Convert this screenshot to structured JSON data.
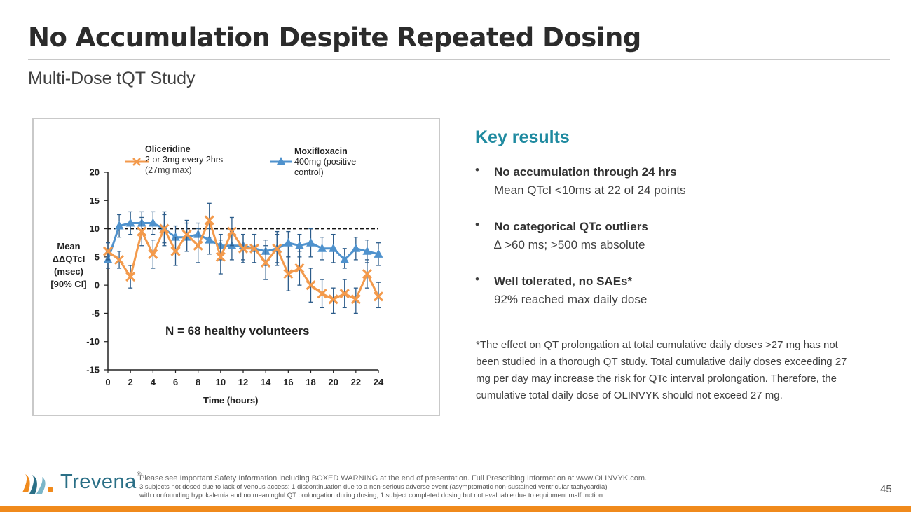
{
  "title": "No Accumulation Despite Repeated Dosing",
  "subtitle": "Multi-Dose tQT Study",
  "colors": {
    "oliceridine": "#f39a4c",
    "moxifloxacin": "#4f92cd",
    "error_bar": "#2c5c8a",
    "key_title": "#1f8aa0",
    "brand_bar": "#f08a1c",
    "logo": "#2a6f86"
  },
  "legend": {
    "oliceridine": {
      "name": "Oliceridine",
      "line1": "2 or 3mg every 2hrs",
      "line2": "(27mg max)"
    },
    "moxifloxacin": {
      "name": "Moxifloxacin",
      "line1": "400mg (positive",
      "line2": "control)"
    }
  },
  "annotation": "N = 68 healthy volunteers",
  "ylabel_lines": [
    "Mean",
    "ΔΔQTcI",
    "(msec)",
    "[90% CI]"
  ],
  "chart_data": {
    "type": "line",
    "xlabel": "Time (hours)",
    "ylabel": "Mean ΔΔQTcI (msec) [90% CI]",
    "xlim": [
      0,
      24
    ],
    "ylim": [
      -15,
      20
    ],
    "x_ticks": [
      0,
      2,
      4,
      6,
      8,
      10,
      12,
      14,
      16,
      18,
      20,
      22,
      24
    ],
    "y_ticks": [
      20,
      15,
      10,
      5,
      0,
      -5,
      -10,
      -15
    ],
    "threshold": 10,
    "x": [
      0,
      1,
      2,
      3,
      4,
      5,
      6,
      7,
      8,
      9,
      10,
      11,
      12,
      13,
      14,
      15,
      16,
      17,
      18,
      19,
      20,
      21,
      22,
      23,
      24
    ],
    "series": [
      {
        "name": "Oliceridine",
        "marker": "x",
        "values": [
          6,
          4.5,
          1.5,
          9.5,
          5.5,
          10,
          6,
          9,
          7,
          11.5,
          5,
          9.5,
          6.5,
          6.5,
          4,
          6.5,
          2,
          3,
          0,
          -1.5,
          -2.5,
          -1.5,
          -2.5,
          2,
          -2
        ],
        "ci_low": [
          4.5,
          3,
          -0.5,
          7,
          3,
          7.5,
          3.5,
          6,
          4,
          8.5,
          2,
          7,
          4,
          4,
          1,
          3.5,
          -1,
          0,
          -3,
          -4,
          -5,
          -4,
          -5,
          -0.5,
          -4
        ],
        "ci_high": [
          7.5,
          6,
          3.5,
          12,
          8,
          12.5,
          8.5,
          11.5,
          10,
          14.5,
          8,
          12,
          9,
          9,
          7,
          9.5,
          5,
          6,
          3,
          1,
          -0.5,
          1,
          -0.5,
          4.5,
          0.5
        ]
      },
      {
        "name": "Moxifloxacin",
        "marker": "triangle",
        "values": [
          4.5,
          10.5,
          11,
          11,
          11,
          10,
          8.5,
          8.5,
          9,
          8,
          7,
          7,
          7,
          6.5,
          6,
          6.5,
          7.5,
          7,
          7.5,
          6.5,
          6.5,
          4.5,
          6.5,
          6,
          5.5
        ],
        "ci_low": [
          3,
          8.5,
          9,
          9,
          9,
          7,
          6,
          6,
          7,
          5.5,
          4.5,
          4.5,
          4.5,
          4,
          3.5,
          4,
          5,
          5,
          5,
          4.5,
          4,
          3,
          4.5,
          4,
          3.5
        ],
        "ci_high": [
          6,
          12.5,
          13,
          13,
          13,
          13,
          10.5,
          11,
          11,
          10,
          9,
          9.5,
          9,
          9,
          8,
          9,
          9.5,
          9,
          10,
          8.5,
          9,
          6.5,
          8.5,
          8,
          7.5
        ]
      }
    ]
  },
  "key_results": {
    "title": "Key results",
    "bullet": "•",
    "items": [
      {
        "head": "No accumulation through 24 hrs",
        "sub": "Mean QTcI <10ms at 22 of 24 points"
      },
      {
        "head": "No categorical QTc outliers",
        "sub": "∆ >60 ms;  >500 ms absolute"
      },
      {
        "head": "Well tolerated, no SAEs*",
        "sub": "92% reached max daily dose"
      }
    ],
    "footnote": "*The effect on QT prolongation at total cumulative daily doses >27 mg has not been studied in a thorough QT study. Total cumulative daily doses exceeding 27 mg per day may increase the risk for QTc interval prolongation. Therefore, the cumulative total daily dose of OLINVYK should not exceed 27 mg."
  },
  "footer": {
    "logo_text": "Trevena",
    "logo_reg": "®",
    "line1": "Please see Important Safety Information including BOXED WARNING at the end of presentation. Full Prescribing Information at www.OLINVYK.com.",
    "line2": "3 subjects not dosed due to lack of venous access: 1 discontinuation due to a non-serious adverse event (asymptomatic non-sustained ventricular tachycardia)",
    "line3": "with confounding hypokalemia and no meaningful QT prolongation during dosing, 1 subject completed dosing but not evaluable due to equipment malfunction",
    "page": "45"
  }
}
